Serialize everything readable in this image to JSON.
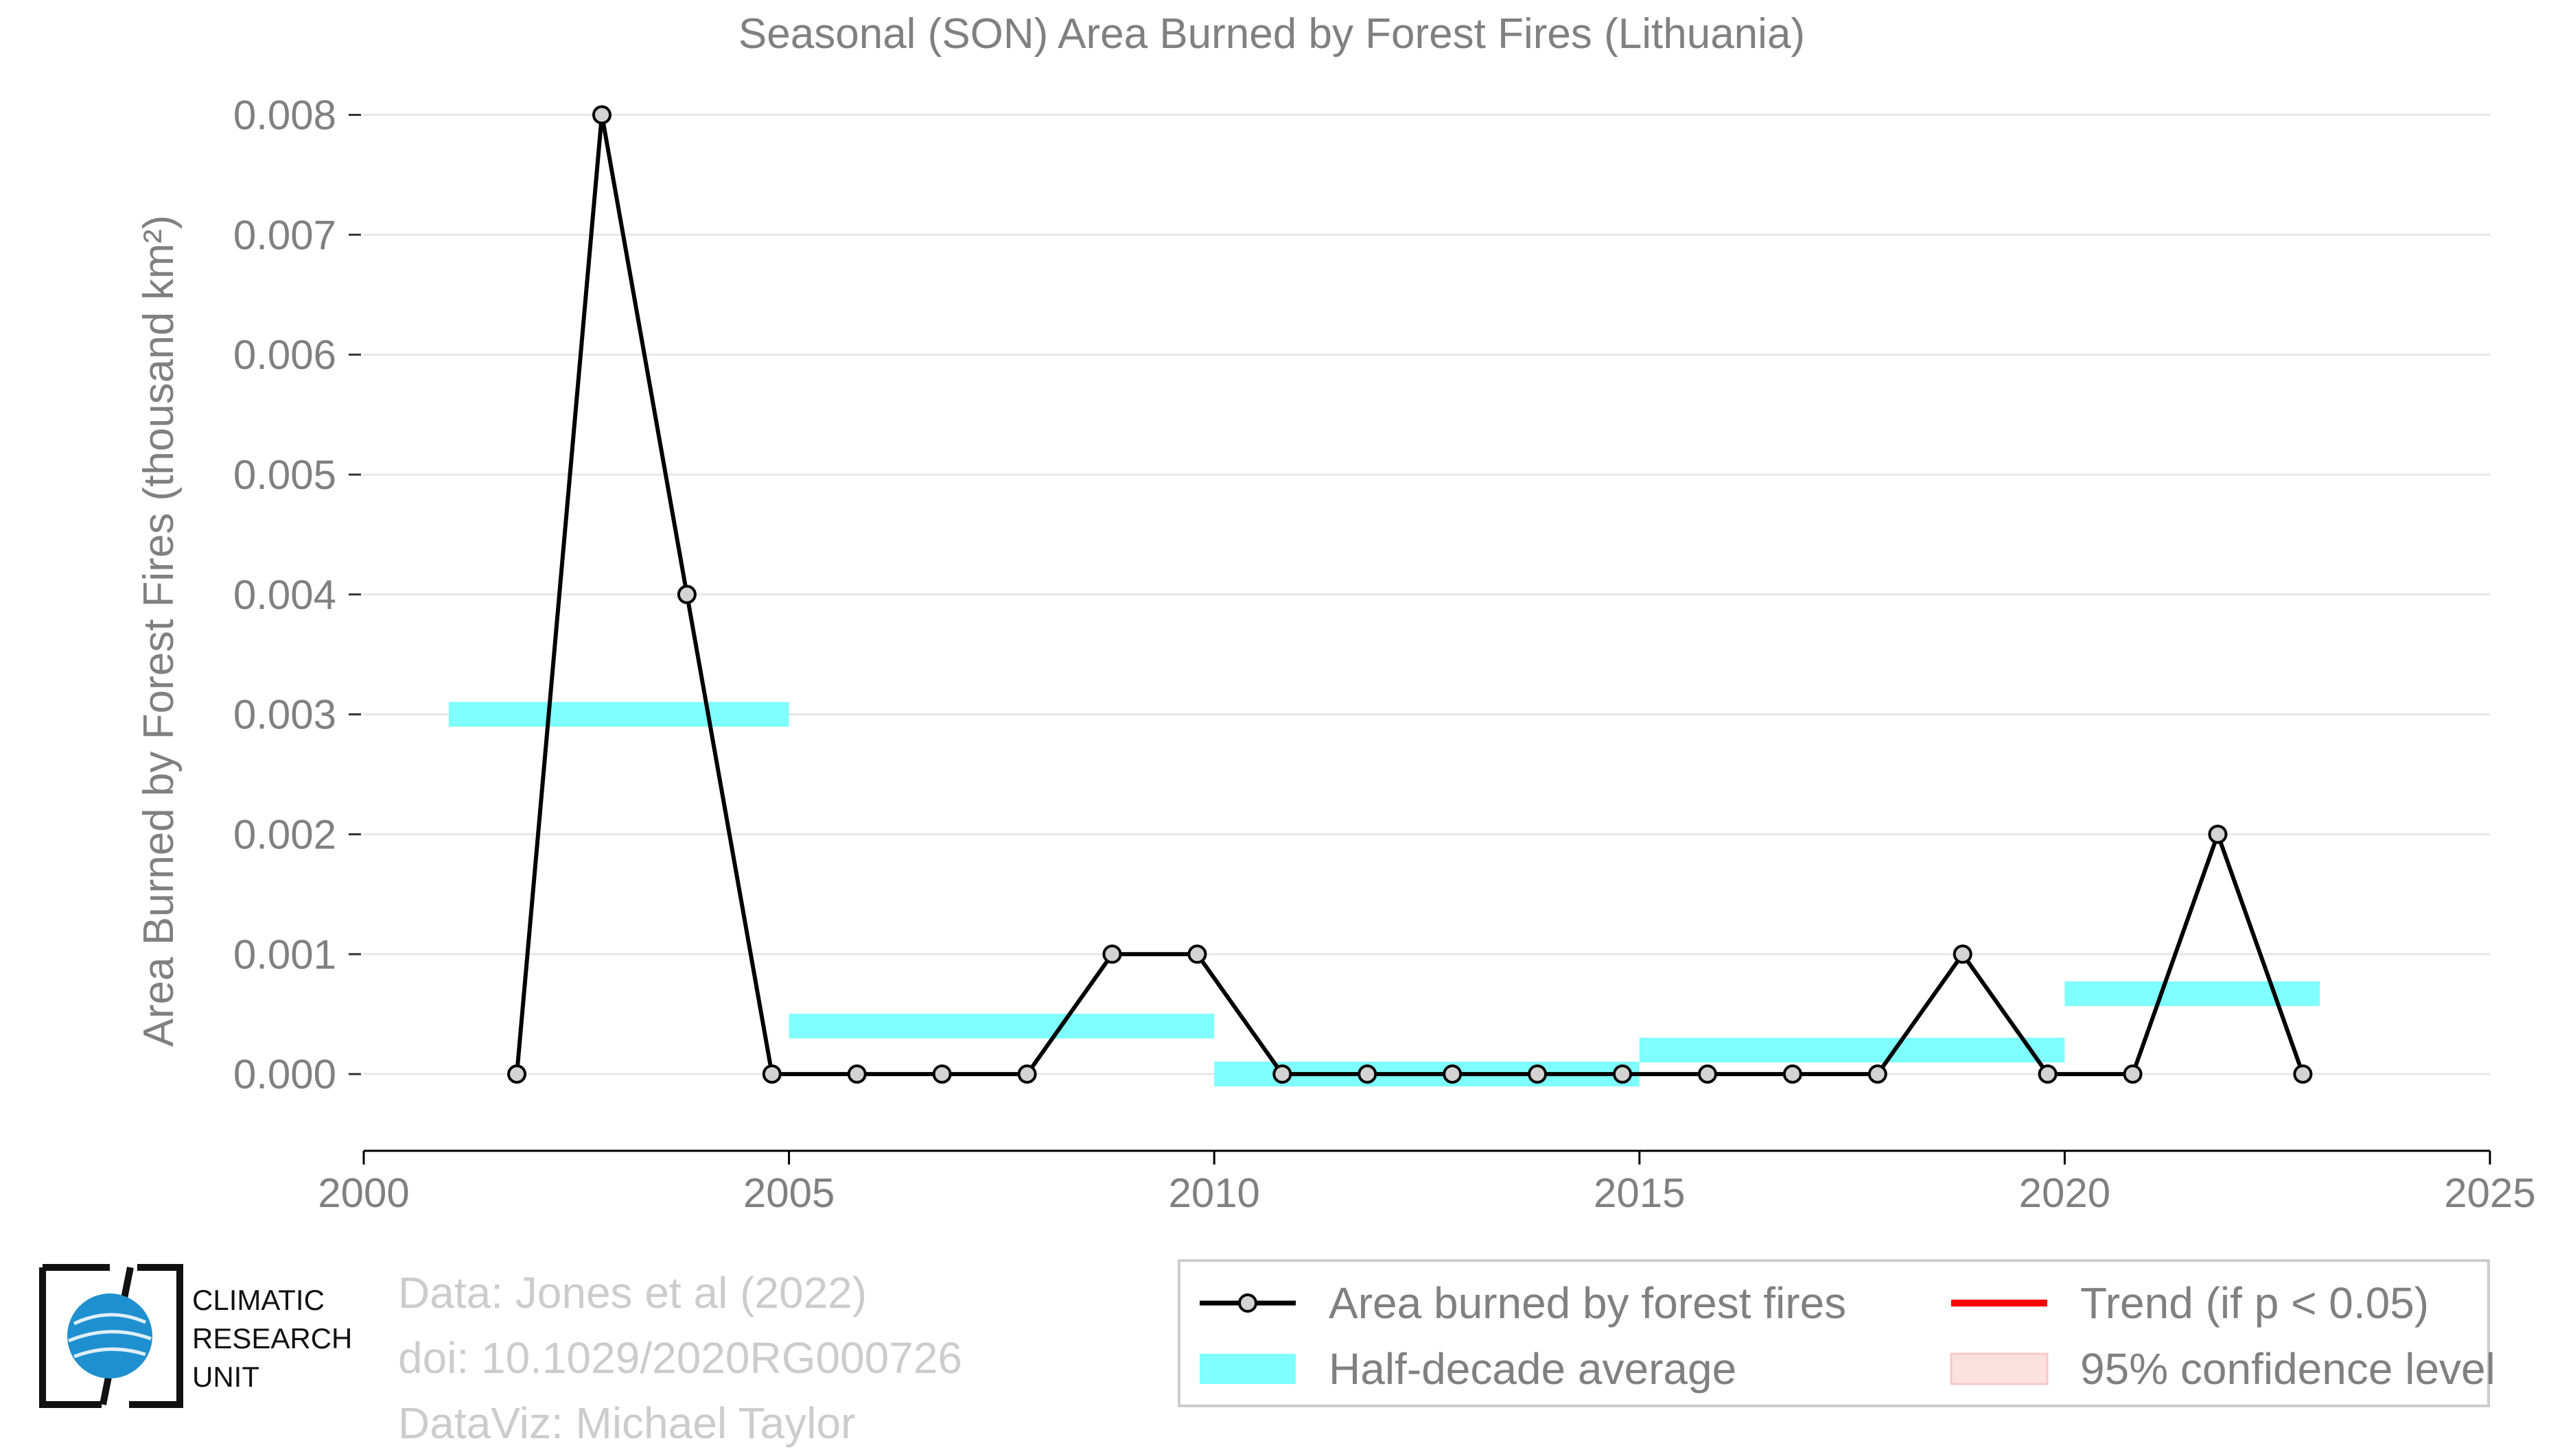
{
  "chart_data": {
    "type": "line",
    "title": "Seasonal (SON) Area Burned by Forest Fires (Lithuania)",
    "ylabel": "Area Burned by Forest Fires (thousand km²)",
    "xlabel": "",
    "xlim": [
      2000,
      2025
    ],
    "ylim": [
      -0.00064,
      0.0081
    ],
    "xticks": [
      2000,
      2005,
      2010,
      2015,
      2020,
      2025
    ],
    "xtick_labels": [
      "2000",
      "2005",
      "2010",
      "2015",
      "2020",
      "2025"
    ],
    "yticks": [
      0.0,
      0.001,
      0.002,
      0.003,
      0.004,
      0.005,
      0.006,
      0.007,
      0.008
    ],
    "ytick_labels": [
      "0.000",
      "0.001",
      "0.002",
      "0.003",
      "0.004",
      "0.005",
      "0.006",
      "0.007",
      "0.008"
    ],
    "grid": true,
    "series": [
      {
        "name": "Area burned by forest fires",
        "color": "#000000",
        "x": [
          2001.8,
          2002.8,
          2003.8,
          2004.8,
          2005.8,
          2006.8,
          2007.8,
          2008.8,
          2009.8,
          2010.8,
          2011.8,
          2012.8,
          2013.8,
          2014.8,
          2015.8,
          2016.8,
          2017.8,
          2018.8,
          2019.8,
          2020.8,
          2021.8,
          2022.8
        ],
        "y": [
          0.0,
          0.008,
          0.004,
          0.0,
          0.0,
          0.0,
          0.0,
          0.001,
          0.001,
          0.0,
          0.0,
          0.0,
          0.0,
          0.0,
          0.0,
          0.0,
          0.0,
          0.001,
          0.0,
          0.0,
          0.002,
          0.0
        ]
      }
    ],
    "half_decade_averages": [
      {
        "x0": 2001,
        "x1": 2005,
        "value": 0.003
      },
      {
        "x0": 2005,
        "x1": 2010,
        "value": 0.0004
      },
      {
        "x0": 2010,
        "x1": 2015,
        "value": 0.0
      },
      {
        "x0": 2015,
        "x1": 2020,
        "value": 0.0002
      },
      {
        "x0": 2020,
        "x1": 2023,
        "value": 0.00067
      }
    ],
    "legend": {
      "placement": "bottom-right",
      "items": [
        {
          "label": "Area burned by forest fires",
          "kind": "line-marker",
          "color": "#000000"
        },
        {
          "label": "Trend (if p < 0.05)",
          "kind": "line",
          "color": "#ff0000"
        },
        {
          "label": "Half-decade average",
          "kind": "band",
          "color": "#7fffff"
        },
        {
          "label": "95% confidence level",
          "kind": "band",
          "color": "#fde0e0"
        }
      ]
    },
    "colors": {
      "text": "#808080",
      "grid": "#e6e6e6",
      "average": "#7fffff",
      "marker_fill": "#d3d3d3"
    }
  },
  "credits": {
    "line1": "Data: Jones et al (2022)",
    "line2": "doi: 10.1029/2020RG000726",
    "line3": "DataViz: Michael Taylor"
  },
  "logo": {
    "line1": "CLIMATIC",
    "line2": "RESEARCH",
    "line3": "UNIT"
  }
}
